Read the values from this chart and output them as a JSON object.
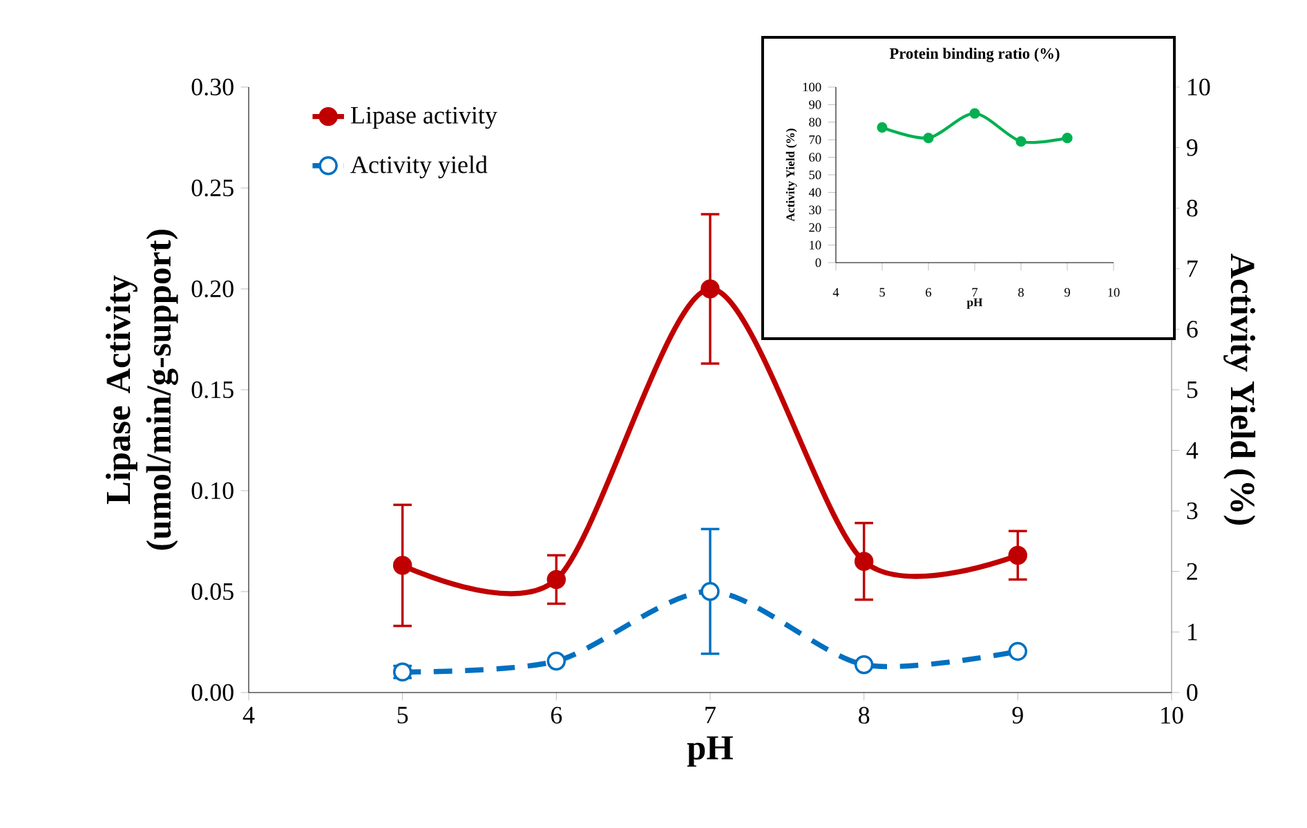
{
  "chart_data": [
    {
      "type": "line",
      "xlabel": "pH",
      "ylabel": "Lipase Activity (umol/min/g-support)",
      "y2label": "Activity Yield (%)",
      "x": [
        5,
        6,
        7,
        8,
        9
      ],
      "series": [
        {
          "name": "Lipase activity",
          "color": "#c00000",
          "values": [
            0.063,
            0.056,
            0.2,
            0.065,
            0.068
          ],
          "errors": [
            0.03,
            0.012,
            0.037,
            0.019,
            0.012
          ],
          "marker": "circle",
          "line_style": "solid"
        },
        {
          "name": "Activity yield",
          "color": "#0070c0",
          "axis": "y2",
          "values": [
            0.34,
            0.52,
            1.67,
            0.46,
            0.68
          ],
          "errors": [
            0.1,
            null,
            1.03,
            null,
            null
          ],
          "marker": "circle",
          "line_style": "dashed"
        }
      ],
      "xlim": [
        4,
        10
      ],
      "xticks": [
        4,
        5,
        6,
        7,
        8,
        9,
        10
      ],
      "ylim": [
        0,
        0.3
      ],
      "yticks": [
        {
          "value": 0,
          "label": "0.00"
        },
        {
          "value": 0.05,
          "label": "0.05"
        },
        {
          "value": 0.1,
          "label": "0.10"
        },
        {
          "value": 0.15,
          "label": "0.15"
        },
        {
          "value": 0.2,
          "label": "0.20"
        },
        {
          "value": 0.25,
          "label": "0.25"
        },
        {
          "value": 0.3,
          "label": "0.30"
        }
      ],
      "y2lim": [
        0,
        10
      ],
      "y2ticks": [
        0,
        1,
        2,
        3,
        4,
        5,
        6,
        7,
        8,
        9,
        10
      ],
      "grid": false,
      "legend": "top left"
    },
    {
      "type": "line",
      "title": "Protein binding ratio (%)",
      "xlabel": "pH",
      "ylabel": "Activity Yield (%)",
      "x": [
        5,
        6,
        7,
        8,
        9
      ],
      "series": [
        {
          "color": "#00b050",
          "values": [
            77,
            71,
            85,
            69,
            71
          ],
          "marker": "circle",
          "line_style": "solid"
        }
      ],
      "xlim": [
        4,
        10
      ],
      "xticks": [
        4,
        5,
        6,
        7,
        8,
        9,
        10
      ],
      "ylim": [
        0,
        100
      ],
      "yticks": [
        0,
        10,
        20,
        30,
        40,
        50,
        60,
        70,
        80,
        90,
        100
      ],
      "grid": false
    }
  ]
}
